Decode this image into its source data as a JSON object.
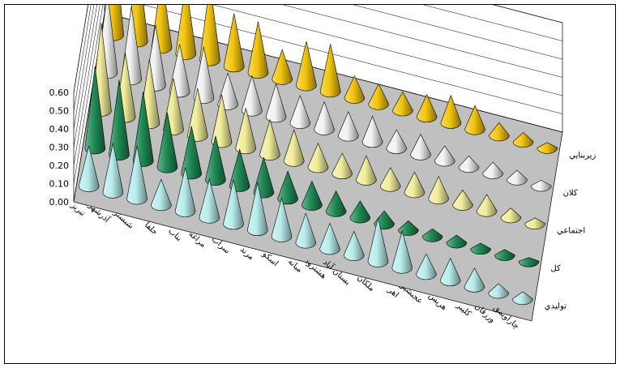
{
  "chart_data": {
    "type": "bar",
    "style": "3d-cone",
    "title": "",
    "xlabel": "",
    "ylabel": "",
    "ylim": [
      0,
      0.6
    ],
    "yticks": [
      "0.00",
      "0.10",
      "0.20",
      "0.30",
      "0.40",
      "0.50",
      "0.60"
    ],
    "grid": true,
    "categories": [
      "تبريز",
      "آذرشهر",
      "شبستر",
      "جلفا",
      "بناب",
      "مراغه",
      "سراب",
      "مرند",
      "اسكو",
      "ميانه",
      "هشترود",
      "بستان آباد",
      "ملكان",
      "اهر",
      "عجبشير",
      "هريس",
      "كليبر",
      "ورزقان",
      "چاراويمق"
    ],
    "series": [
      {
        "name": "توليدي",
        "color": "#b8ecec",
        "values": [
          0.22,
          0.27,
          0.29,
          0.14,
          0.24,
          0.21,
          0.24,
          0.26,
          0.21,
          0.16,
          0.14,
          0.13,
          0.24,
          0.2,
          0.11,
          0.12,
          0.1,
          0.05,
          0.04
        ]
      },
      {
        "name": "كل",
        "color": "#1f8a55",
        "values": [
          0.45,
          0.41,
          0.38,
          0.3,
          0.26,
          0.24,
          0.2,
          0.19,
          0.15,
          0.13,
          0.11,
          0.09,
          0.07,
          0.05,
          0.04,
          0.04,
          0.03,
          0.03,
          0.02
        ]
      },
      {
        "name": "اجتماعي",
        "color": "#f1ed9a",
        "values": [
          0.48,
          0.35,
          0.35,
          0.28,
          0.26,
          0.26,
          0.22,
          0.19,
          0.17,
          0.13,
          0.11,
          0.13,
          0.1,
          0.11,
          0.12,
          0.08,
          0.09,
          0.05,
          0.03
        ]
      },
      {
        "name": "كلان",
        "color": "#f2f2f2",
        "values": [
          0.44,
          0.4,
          0.33,
          0.26,
          0.28,
          0.17,
          0.19,
          0.18,
          0.15,
          0.15,
          0.13,
          0.14,
          0.1,
          0.11,
          0.08,
          0.06,
          0.06,
          0.05,
          0.03
        ]
      },
      {
        "name": "زيربنايي",
        "color": "#f2c40c",
        "values": [
          0.57,
          0.48,
          0.39,
          0.39,
          0.42,
          0.29,
          0.28,
          0.16,
          0.24,
          0.26,
          0.12,
          0.11,
          0.1,
          0.12,
          0.15,
          0.13,
          0.07,
          0.05,
          0.03
        ]
      }
    ]
  }
}
